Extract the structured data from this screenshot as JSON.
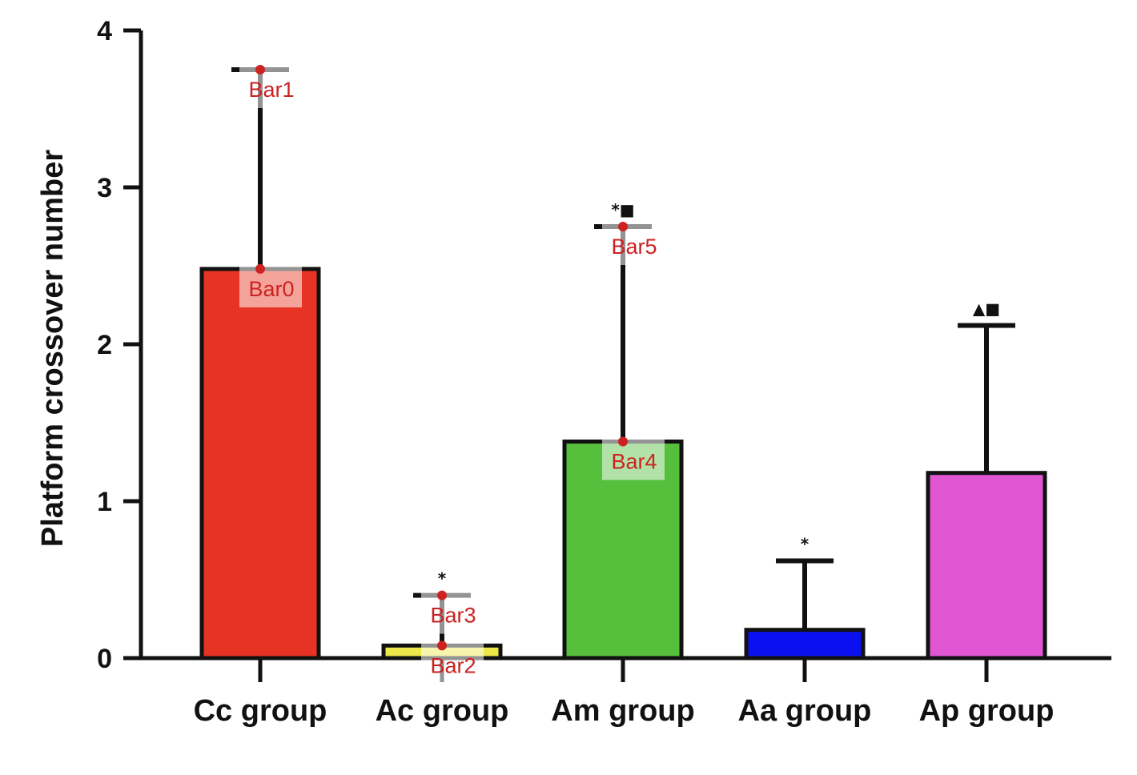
{
  "chart_data": {
    "type": "bar",
    "ylabel": "Platform crossover number",
    "xlabel": "",
    "title": "",
    "ylim": [
      0,
      4
    ],
    "yticks": [
      0,
      1,
      2,
      3,
      4
    ],
    "grid": false,
    "categories": [
      "Cc group",
      "Ac group",
      "Am group",
      "Aa group",
      "Ap group"
    ],
    "values": [
      2.48,
      0.08,
      1.38,
      0.18,
      1.18
    ],
    "error_upper": [
      3.75,
      0.4,
      2.75,
      0.62,
      2.12
    ],
    "significance_marks": [
      "",
      "*",
      "*■",
      "*",
      "▲■"
    ],
    "colors": [
      "#e63323",
      "#ece84a",
      "#56bf3c",
      "#0a10f0",
      "#e056d2"
    ],
    "annotations": [
      {
        "label": "Bar0",
        "category": "Cc group",
        "value": 2.48
      },
      {
        "label": "Bar1",
        "category": "Cc group",
        "value": 3.75
      },
      {
        "label": "Bar2",
        "category": "Ac group",
        "value": 0.08
      },
      {
        "label": "Bar3",
        "category": "Ac group",
        "value": 0.4
      },
      {
        "label": "Bar4",
        "category": "Am group",
        "value": 1.38
      },
      {
        "label": "Bar5",
        "category": "Am group",
        "value": 2.75
      }
    ]
  }
}
